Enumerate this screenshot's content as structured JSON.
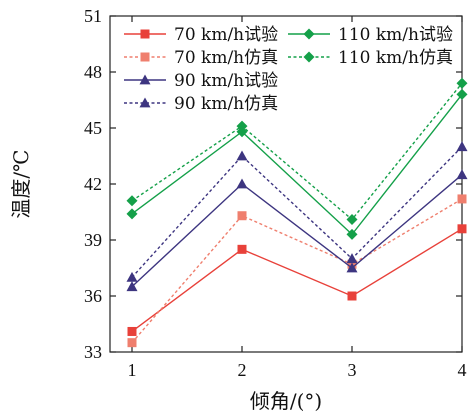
{
  "chart_data": {
    "type": "line",
    "xlabel": "倾角/(°)",
    "ylabel": "温度/℃",
    "x": [
      1,
      2,
      3,
      4
    ],
    "xlim": [
      0.8,
      4
    ],
    "ylim": [
      33,
      51
    ],
    "xticks": [
      "1",
      "2",
      "3",
      "4"
    ],
    "yticks": [
      "33",
      "36",
      "39",
      "42",
      "45",
      "48",
      "51"
    ],
    "grid": false,
    "legend_position": "top",
    "series": [
      {
        "name": "70 km/h试验",
        "values": [
          34.1,
          38.5,
          36.0,
          39.6
        ],
        "color": "#e8413a",
        "dash": false,
        "marker": "square"
      },
      {
        "name": "70 km/h仿真",
        "values": [
          33.5,
          40.3,
          37.7,
          41.2
        ],
        "color": "#ef7f6e",
        "dash": true,
        "marker": "square"
      },
      {
        "name": "90 km/h试验",
        "values": [
          36.5,
          42.0,
          37.5,
          42.5
        ],
        "color": "#3d3580",
        "dash": false,
        "marker": "triangle"
      },
      {
        "name": "90 km/h仿真",
        "values": [
          37.0,
          43.5,
          38.0,
          44.0
        ],
        "color": "#3d3580",
        "dash": true,
        "marker": "triangle"
      },
      {
        "name": "110 km/h试验",
        "values": [
          40.4,
          44.8,
          39.3,
          46.8
        ],
        "color": "#14a049",
        "dash": false,
        "marker": "diamond"
      },
      {
        "name": "110 km/h仿真",
        "values": [
          41.1,
          45.1,
          40.1,
          47.4
        ],
        "color": "#14a049",
        "dash": true,
        "marker": "diamond"
      }
    ]
  }
}
